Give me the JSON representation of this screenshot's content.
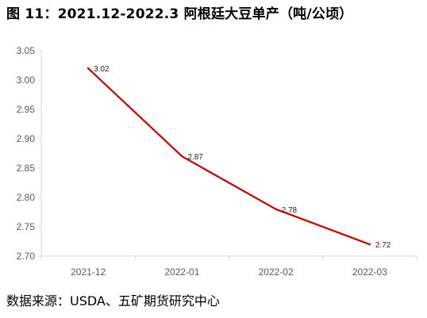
{
  "page": {
    "title": "图 11：2021.12-2022.3 阿根廷大豆单产（吨/公顷）",
    "source": "数据来源：USDA、五矿期货研究中心"
  },
  "chart_data": {
    "type": "line",
    "title": "图 11：2021.12-2022.3 阿根廷大豆单产（吨/公顷）",
    "xlabel": "",
    "ylabel": "",
    "categories": [
      "2021-12",
      "2022-01",
      "2022-02",
      "2022-03"
    ],
    "series": [
      {
        "values": [
          3.02,
          2.87,
          2.78,
          2.72
        ],
        "color": "#c00000",
        "data_labels": [
          "3.02",
          "2.87",
          "2.78",
          "2.72"
        ]
      }
    ],
    "ylim": [
      2.7,
      3.05
    ],
    "yticks": [
      2.7,
      2.75,
      2.8,
      2.85,
      2.9,
      2.95,
      3.0,
      3.05
    ],
    "ytick_labels": [
      "2.70",
      "2.75",
      "2.80",
      "2.85",
      "2.90",
      "2.95",
      "3.00",
      "3.05"
    ],
    "grid": false,
    "legend": "none"
  }
}
